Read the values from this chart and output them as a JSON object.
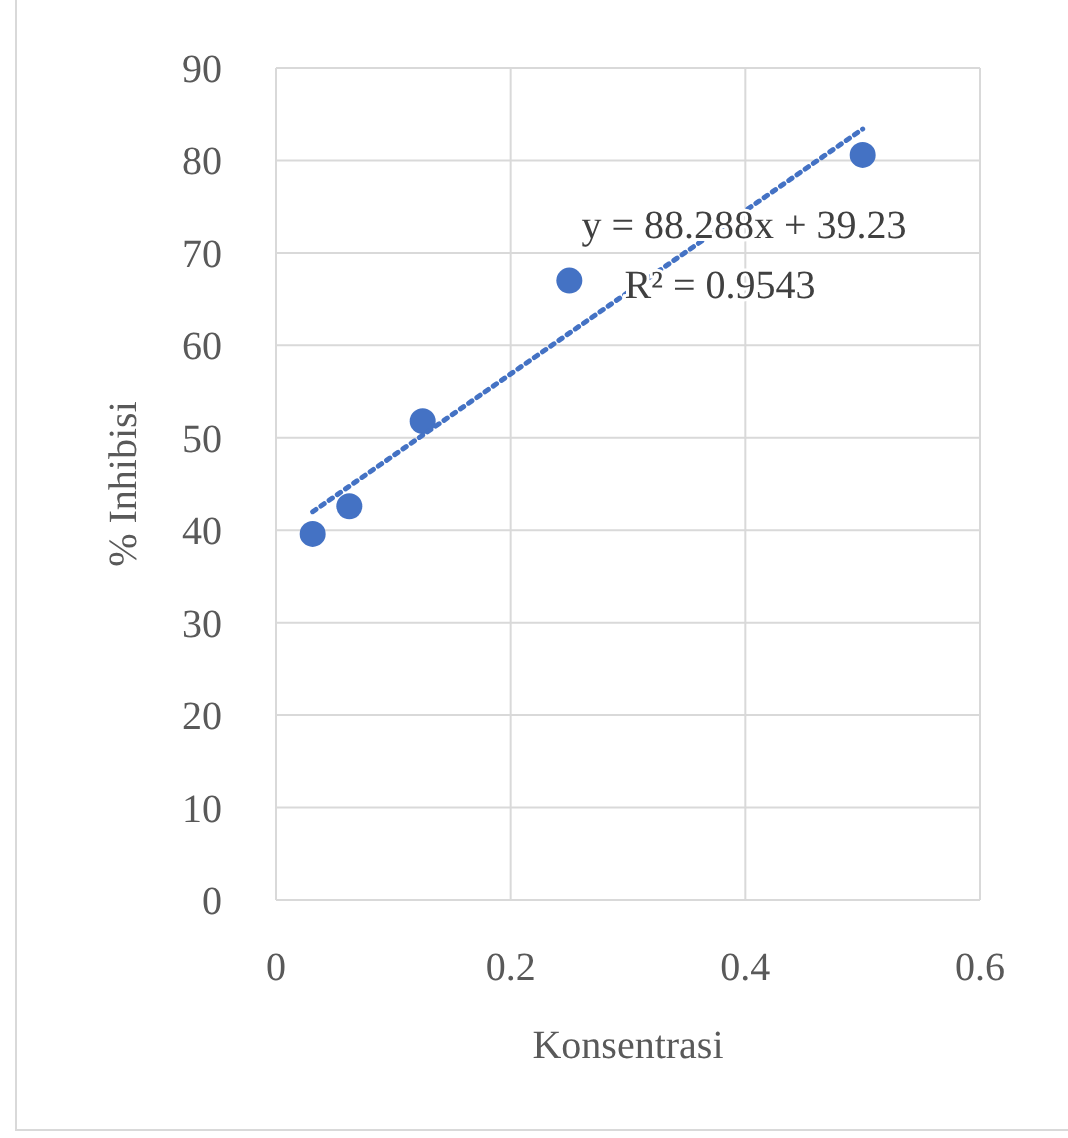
{
  "chart_data": {
    "type": "scatter",
    "xlabel": "Konsentrasi",
    "ylabel": "% Inhibisi",
    "xlim": [
      0,
      0.6
    ],
    "xticks": [
      0,
      0.2,
      0.4,
      0.6
    ],
    "ylim": [
      0,
      90
    ],
    "yticks": [
      0,
      10,
      20,
      30,
      40,
      50,
      60,
      70,
      80,
      90
    ],
    "grid": true,
    "series": [
      {
        "color": "#4472c4",
        "marker": "circle",
        "x": [
          0.03125,
          0.0625,
          0.125,
          0.25,
          0.5
        ],
        "values": [
          39.6,
          42.6,
          51.8,
          67,
          80.6
        ]
      },
      {
        "type": "line",
        "color": "#4472c4",
        "marker": "none",
        "line_style": "dotted",
        "x": [
          0.03125,
          0.5
        ],
        "values": [
          42,
          83.4
        ]
      }
    ],
    "annotations": [
      "y = 88.288x + 39.23",
      "R² = 0.9543"
    ]
  }
}
